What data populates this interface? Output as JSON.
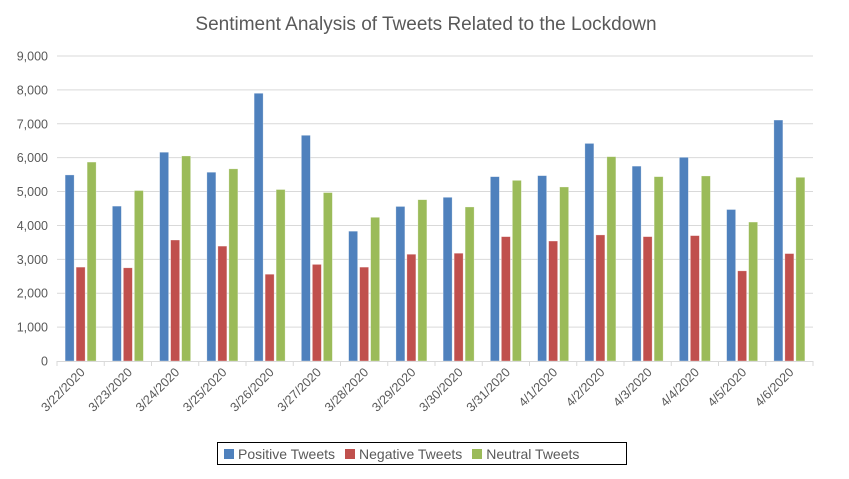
{
  "chart_data": {
    "type": "bar",
    "title": "Sentiment Analysis of Tweets Related to the Lockdown",
    "xlabel": "",
    "ylabel": "",
    "ylim": [
      0,
      9000
    ],
    "yticks": [
      "0",
      "1,000",
      "2,000",
      "3,000",
      "4,000",
      "5,000",
      "6,000",
      "7,000",
      "8,000",
      "9,000"
    ],
    "grid": true,
    "legend_position": "bottom",
    "categories": [
      "3/22/2020",
      "3/23/2020",
      "3/24/2020",
      "3/25/2020",
      "3/26/2020",
      "3/27/2020",
      "3/28/2020",
      "3/29/2020",
      "3/30/2020",
      "3/31/2020",
      "4/1/2020",
      "4/2/2020",
      "4/3/2020",
      "4/4/2020",
      "4/5/2020",
      "4/6/2020"
    ],
    "series": [
      {
        "name": "Positive Tweets",
        "color": "#4F81BD",
        "values": [
          5490,
          4570,
          6160,
          5570,
          7900,
          6660,
          3830,
          4560,
          4830,
          5440,
          5470,
          6420,
          5750,
          6010,
          4470,
          7110
        ]
      },
      {
        "name": "Negative Tweets",
        "color": "#C0504D",
        "values": [
          2770,
          2750,
          3570,
          3390,
          2560,
          2850,
          2770,
          3150,
          3180,
          3670,
          3540,
          3720,
          3670,
          3700,
          2660,
          3170
        ]
      },
      {
        "name": "Neutral Tweets",
        "color": "#9BBB59",
        "values": [
          5870,
          5030,
          6050,
          5670,
          5060,
          4970,
          4240,
          4760,
          4545,
          5330,
          5135,
          6030,
          5440,
          5460,
          4100,
          5420
        ]
      }
    ]
  }
}
